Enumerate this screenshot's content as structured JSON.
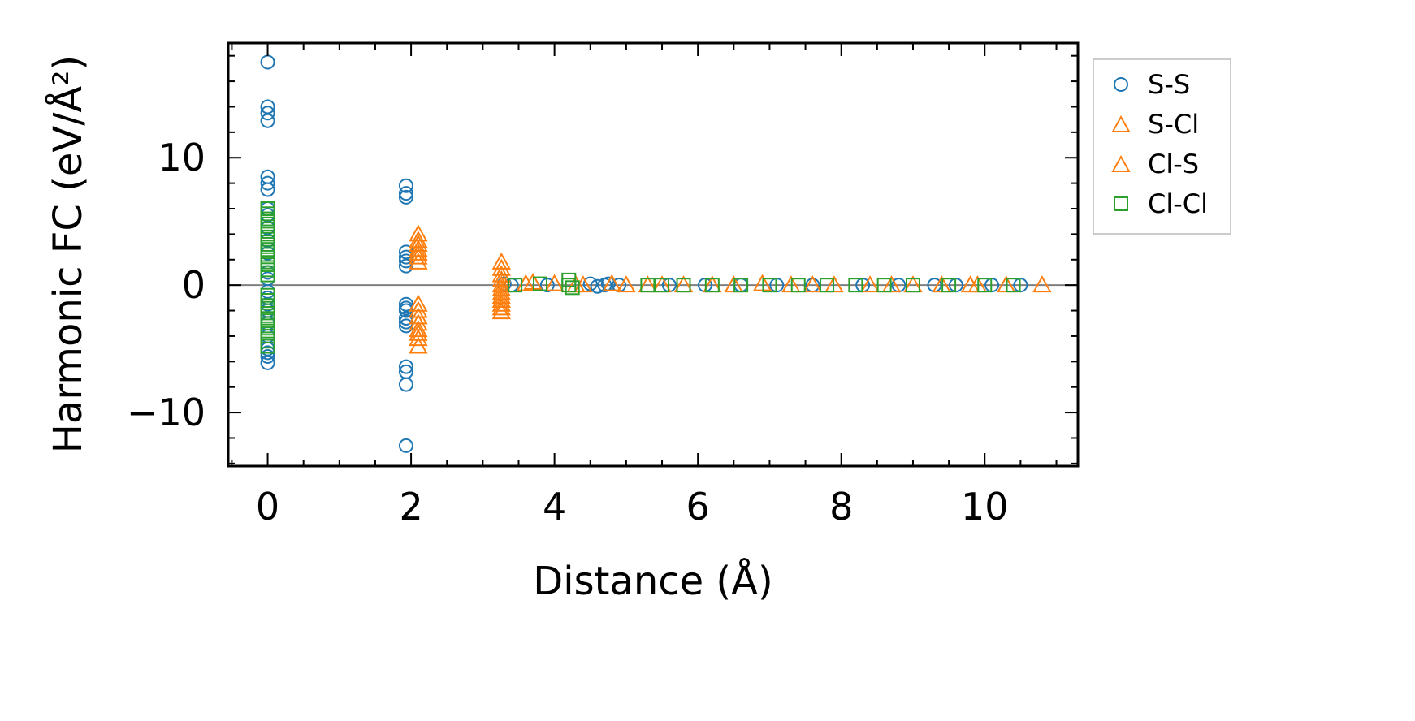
{
  "chart_data": {
    "type": "scatter",
    "title": "",
    "xlabel": "Distance (Å)",
    "ylabel": "Harmonic FC (eV/Å²)",
    "xlim": [
      -0.55,
      11.3
    ],
    "ylim": [
      -14.2,
      19.0
    ],
    "xticks": [
      0,
      2,
      4,
      6,
      8,
      10
    ],
    "xtick_labels": [
      "0",
      "2",
      "4",
      "6",
      "8",
      "10"
    ],
    "yticks": [
      -10,
      0,
      10
    ],
    "ytick_labels": [
      "−10",
      "0",
      "10"
    ],
    "zero_line": 0,
    "grid": false,
    "legend_position": "outside-right-top",
    "series": [
      {
        "name": "S-S",
        "marker": "circle",
        "color": "#1f77b4",
        "x": [
          0,
          0,
          0,
          0,
          0,
          0,
          0,
          0,
          0,
          0,
          0,
          0,
          0,
          0,
          0,
          0,
          0,
          0,
          0,
          0,
          0,
          0,
          0,
          0,
          1.93,
          1.93,
          1.93,
          1.93,
          1.93,
          1.93,
          1.93,
          1.93,
          1.93,
          1.93,
          1.93,
          1.93,
          1.93,
          1.93,
          1.93,
          1.93,
          1.93,
          3.3,
          3.4,
          3.9,
          4.5,
          4.6,
          4.7,
          4.75,
          4.9,
          5.6,
          6.1,
          6.6,
          7.1,
          7.6,
          8.3,
          8.8,
          9.3,
          9.6,
          10.1,
          10.5
        ],
        "y": [
          17.5,
          14.0,
          13.5,
          12.9,
          8.5,
          8.0,
          7.5,
          6.0,
          5.5,
          4.5,
          3.5,
          2.5,
          1.0,
          0.5,
          -0.5,
          -1.0,
          -1.5,
          -2.0,
          -3.0,
          -4.0,
          -5.0,
          -5.3,
          -5.6,
          -6.1,
          7.8,
          7.2,
          6.9,
          2.6,
          2.2,
          1.9,
          1.5,
          -1.5,
          -1.8,
          -2.0,
          -2.6,
          -2.9,
          -3.2,
          -6.4,
          -6.8,
          -7.8,
          -12.6,
          0.1,
          0.0,
          0.0,
          0.1,
          -0.1,
          0.0,
          0.1,
          0.0,
          0.0,
          0.0,
          0.0,
          0.0,
          0.0,
          0.0,
          0.0,
          0.0,
          0.0,
          0.0,
          0.0
        ]
      },
      {
        "name": "S-Cl",
        "marker": "triangle",
        "color": "#ff7f0e",
        "x": [
          2.1,
          2.1,
          2.1,
          2.1,
          2.1,
          2.1,
          2.1,
          2.1,
          2.1,
          2.1,
          2.1,
          2.1,
          2.1,
          2.1,
          2.1,
          3.26,
          3.26,
          3.26,
          3.26,
          3.26,
          3.26,
          3.26,
          3.26,
          3.26,
          3.26,
          3.26,
          3.26,
          3.7,
          4.0,
          4.4,
          4.8,
          5.0,
          5.3,
          5.8,
          6.2,
          6.9,
          7.3,
          7.9,
          8.4,
          9.0,
          9.4,
          9.8,
          10.3,
          10.8
        ],
        "y": [
          4.0,
          3.5,
          3.2,
          2.8,
          2.5,
          2.2,
          1.8,
          -1.5,
          -2.0,
          -2.5,
          -3.0,
          -3.5,
          -3.8,
          -4.2,
          -4.8,
          1.8,
          1.3,
          0.8,
          0.4,
          0.0,
          -0.3,
          -0.6,
          -0.9,
          -1.2,
          -1.5,
          -1.8,
          -2.1,
          0.2,
          0.1,
          0.0,
          0.1,
          0.0,
          0.0,
          0.0,
          0.0,
          0.1,
          0.0,
          0.0,
          0.0,
          0.0,
          0.0,
          0.0,
          0.0,
          0.0
        ]
      },
      {
        "name": "Cl-S",
        "marker": "triangle",
        "color": "#ff7f0e",
        "x": [
          3.6,
          4.3,
          5.5,
          6.5,
          7.6,
          8.7,
          9.9
        ],
        "y": [
          0.1,
          0.0,
          0.0,
          0.0,
          0.0,
          0.0,
          0.0
        ]
      },
      {
        "name": "Cl-Cl",
        "marker": "square",
        "color": "#2ca02c",
        "x": [
          0,
          0,
          0,
          0,
          0,
          0,
          0,
          0,
          0,
          0,
          0,
          0,
          0,
          0,
          0,
          0,
          0,
          0,
          0,
          0,
          0,
          0,
          0,
          0,
          0,
          3.45,
          3.8,
          4.2,
          4.2,
          4.25,
          5.3,
          5.5,
          5.8,
          6.2,
          6.6,
          7.0,
          7.4,
          7.8,
          8.2,
          8.6,
          9.0,
          9.5,
          10.0,
          10.4
        ],
        "y": [
          6.0,
          5.6,
          5.2,
          4.8,
          4.4,
          4.0,
          3.6,
          3.2,
          2.8,
          2.4,
          2.0,
          1.6,
          1.2,
          0.8,
          -0.8,
          -1.2,
          -1.6,
          -2.0,
          -2.4,
          -2.8,
          -3.2,
          -3.6,
          -4.0,
          -4.4,
          -4.8,
          0.0,
          0.1,
          0.4,
          0.0,
          -0.2,
          0.0,
          0.0,
          0.0,
          0.0,
          0.0,
          0.0,
          0.0,
          0.0,
          0.0,
          0.0,
          0.0,
          0.0,
          0.0,
          0.0
        ]
      }
    ]
  }
}
